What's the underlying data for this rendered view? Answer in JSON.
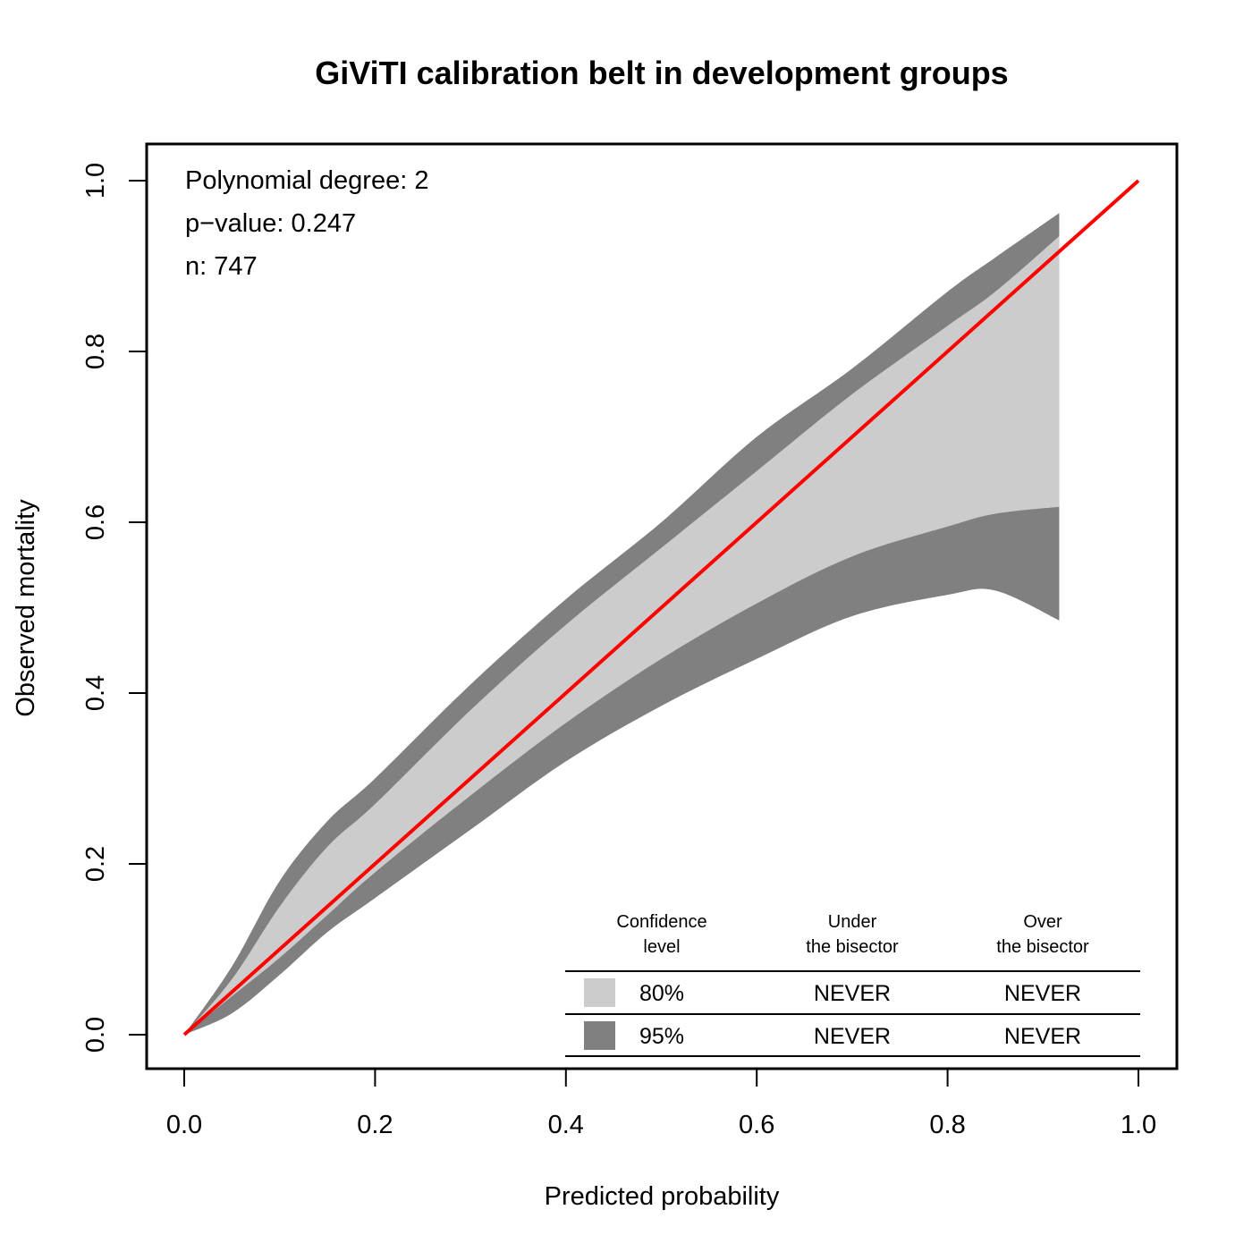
{
  "chart_data": {
    "type": "area",
    "title": "GiViTI calibration belt in development groups",
    "xlabel": "Predicted probability",
    "ylabel": "Observed mortality",
    "xlim": [
      0,
      1
    ],
    "ylim": [
      0,
      1
    ],
    "x_ticks": [
      "0.0",
      "0.2",
      "0.4",
      "0.6",
      "0.8",
      "1.0"
    ],
    "y_ticks": [
      "0.0",
      "0.2",
      "0.4",
      "0.6",
      "0.8",
      "1.0"
    ],
    "grid": false,
    "annotations": [
      "Polynomial degree: 2",
      "p−value: 0.247",
      "n: 747"
    ],
    "bisector": {
      "x": [
        0,
        1
      ],
      "y": [
        0,
        1
      ],
      "color": "#ff0000"
    },
    "belt": {
      "x": [
        0.0,
        0.05,
        0.1,
        0.15,
        0.2,
        0.3,
        0.4,
        0.5,
        0.6,
        0.7,
        0.8,
        0.85,
        0.917
      ],
      "upper_95": [
        0.0,
        0.08,
        0.18,
        0.25,
        0.3,
        0.41,
        0.51,
        0.6,
        0.7,
        0.78,
        0.87,
        0.91,
        0.962
      ],
      "upper_80": [
        0.0,
        0.065,
        0.15,
        0.22,
        0.27,
        0.38,
        0.48,
        0.57,
        0.66,
        0.75,
        0.83,
        0.87,
        0.935
      ],
      "lower_80": [
        0.0,
        0.045,
        0.09,
        0.14,
        0.19,
        0.28,
        0.365,
        0.44,
        0.505,
        0.56,
        0.595,
        0.61,
        0.618
      ],
      "lower_95": [
        0.0,
        0.025,
        0.07,
        0.12,
        0.16,
        0.24,
        0.32,
        0.385,
        0.44,
        0.49,
        0.515,
        0.52,
        0.485
      ]
    },
    "colors": {
      "band_95": "#808080",
      "band_80": "#cccccc"
    },
    "table": {
      "headers": [
        [
          "Confidence",
          "level"
        ],
        [
          "Under",
          "the bisector"
        ],
        [
          "Over",
          "the bisector"
        ]
      ],
      "rows": [
        {
          "level": "80%",
          "under": "NEVER",
          "over": "NEVER",
          "color": "#cccccc"
        },
        {
          "level": "95%",
          "under": "NEVER",
          "over": "NEVER",
          "color": "#808080"
        }
      ]
    }
  }
}
